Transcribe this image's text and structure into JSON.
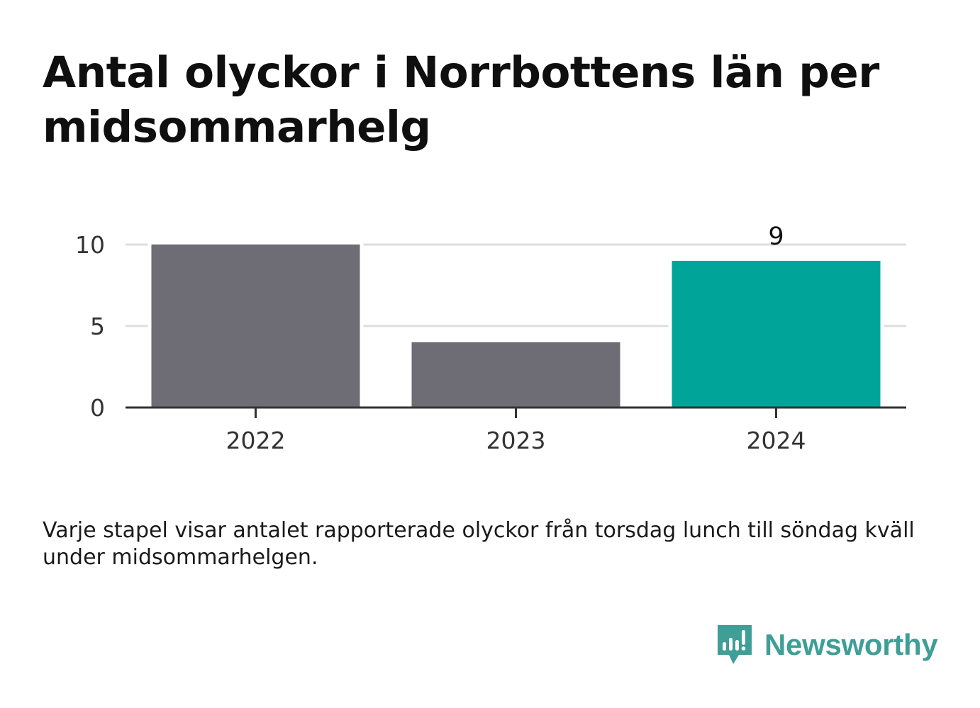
{
  "title": "Antal olyckor i Norrbottens län per midsommarhelg",
  "caption": "Varje stapel visar antalet rapporterade olyckor från torsdag lunch till söndag kväll under midsommarhelgen.",
  "brand": {
    "name": "Newsworthy",
    "icon": "newsworthy-logo-icon",
    "color": "#3f9e96"
  },
  "colors": {
    "bar_default": "#6e6d75",
    "bar_highlight": "#00a499",
    "grid": "#dedede",
    "axis": "#333333",
    "tick_text": "#333333",
    "title_text": "#0f0f0f"
  },
  "chart_data": {
    "type": "bar",
    "categories": [
      "2022",
      "2023",
      "2024"
    ],
    "values": [
      10,
      4,
      9
    ],
    "highlight_index": 2,
    "data_labels": [
      "",
      "",
      "9"
    ],
    "ylim": [
      0,
      10
    ],
    "yticks": [
      "0",
      "5",
      "10"
    ],
    "xlabel": "",
    "ylabel": "",
    "grid": true,
    "legend": "none"
  }
}
